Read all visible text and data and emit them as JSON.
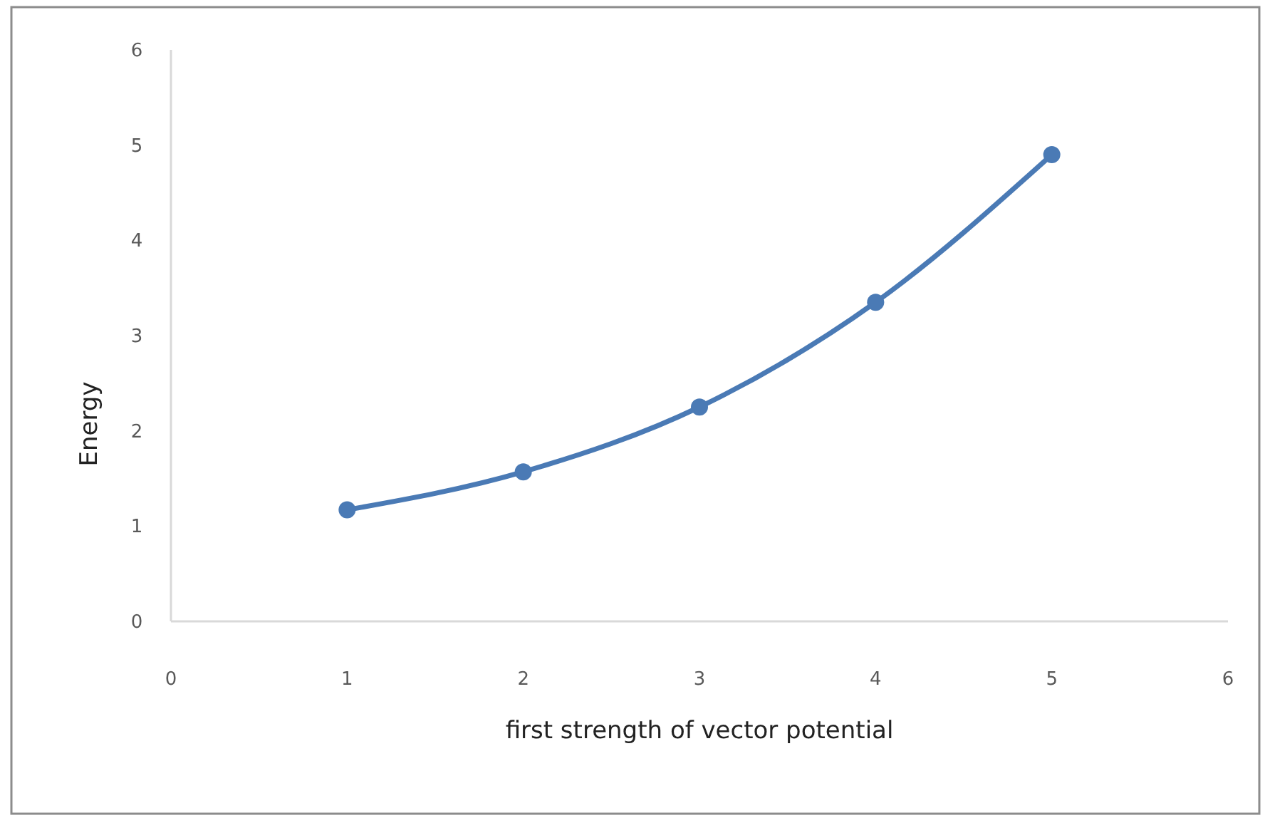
{
  "chart_data": {
    "type": "line",
    "xlabel": "first strength of vector potential",
    "ylabel": "Energy",
    "x": [
      1,
      2,
      3,
      4,
      5
    ],
    "series": [
      {
        "color": "#4a7ab5",
        "values": [
          1.17,
          1.57,
          2.25,
          3.35,
          4.9
        ]
      }
    ],
    "xlim": [
      0,
      6
    ],
    "xticks": [
      0,
      1,
      2,
      3,
      4,
      5,
      6
    ],
    "ylim": [
      0,
      6
    ],
    "yticks": [
      0,
      1,
      2,
      3,
      4,
      5,
      6
    ],
    "grid": false,
    "marker": "circle",
    "line_style": "solid"
  }
}
